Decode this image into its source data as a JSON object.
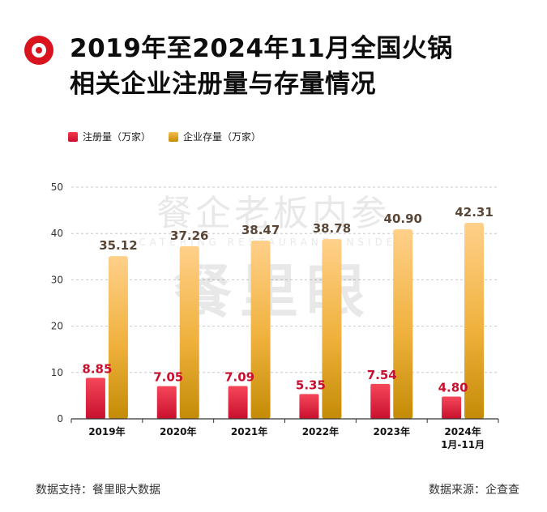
{
  "header": {
    "title_line1": "2019年至2024年11月全国火锅",
    "title_line2": "相关企业注册量与存量情况"
  },
  "colors": {
    "accent": "#d9141e",
    "registration_bar": "#e5263a",
    "stock_bar": "#e6a817",
    "registration_label": "#c8102e",
    "stock_label": "#5a4636"
  },
  "watermark": {
    "line1": "餐企老板内参",
    "line2": "CATERING RESTAURANT INSIDER",
    "line3": "餐里眼"
  },
  "chart_data": {
    "type": "bar",
    "categories": [
      "2019年",
      "2020年",
      "2021年",
      "2022年",
      "2023年",
      "2024年\n1月-11月"
    ],
    "series": [
      {
        "name": "注册量（万家）",
        "values": [
          8.85,
          7.05,
          7.09,
          5.35,
          7.54,
          4.8
        ],
        "labels": [
          "8.85",
          "7.05",
          "7.09",
          "5.35",
          "7.54",
          "4.80"
        ]
      },
      {
        "name": "企业存量（万家）",
        "values": [
          35.12,
          37.26,
          38.47,
          38.78,
          40.9,
          42.31
        ],
        "labels": [
          "35.12",
          "37.26",
          "38.47",
          "38.78",
          "40.90",
          "42.31"
        ]
      }
    ],
    "ylim": [
      0,
      50
    ],
    "yticks": [
      "0",
      "10",
      "20",
      "30",
      "40",
      "50"
    ],
    "grid": true,
    "legend": "top-left"
  },
  "footer": {
    "data_support": "数据支持：餐里眼大数据",
    "data_source": "数据来源：企查查"
  }
}
